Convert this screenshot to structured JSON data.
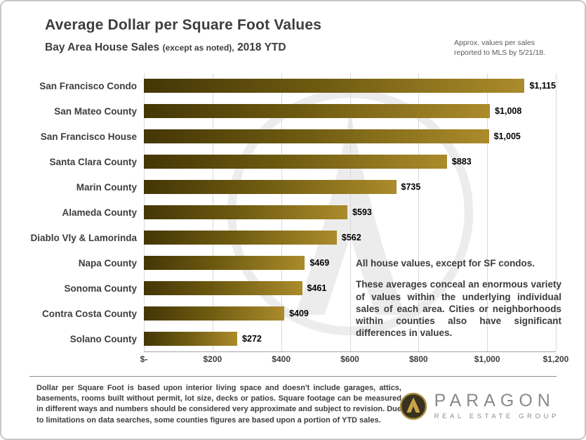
{
  "header": {
    "title": "Average Dollar per Square Foot Values",
    "subtitle_main": "Bay Area House Sales",
    "subtitle_paren": "(except as noted),",
    "subtitle_year": "2018 YTD",
    "note_line1": "Approx. values per sales",
    "note_line2": "reported to MLS by 5/21/18."
  },
  "chart_data": {
    "type": "bar",
    "orientation": "horizontal",
    "title": "Average Dollar per Square Foot Values",
    "subtitle": "Bay Area House Sales (except as noted), 2018 YTD",
    "categories": [
      "San Francisco Condo",
      "San Mateo County",
      "San Francisco House",
      "Santa Clara County",
      "Marin County",
      "Alameda County",
      "Diablo Vly & Lamorinda",
      "Napa County",
      "Sonoma County",
      "Contra Costa County",
      "Solano County"
    ],
    "values": [
      1115,
      1008,
      1005,
      883,
      735,
      593,
      562,
      469,
      461,
      409,
      272
    ],
    "value_labels": [
      "$1,115",
      "$1,008",
      "$1,005",
      "$883",
      "$735",
      "$593",
      "$562",
      "$469",
      "$461",
      "$409",
      "$272"
    ],
    "xlim": [
      0,
      1200
    ],
    "x_ticks": [
      "$-",
      "$200",
      "$400",
      "$600",
      "$800",
      "$1,000",
      "$1,200"
    ],
    "x_tick_values": [
      0,
      200,
      400,
      600,
      800,
      1000,
      1200
    ],
    "grid": true,
    "legend": "none",
    "bar_gradient": [
      "#443606",
      "#ab8b2b"
    ]
  },
  "annotation": {
    "para1": "All house values, except for SF condos.",
    "para2": "These averages conceal an enormous variety of values within the underlying individual sales of each area. Cities or neighborhoods within counties also have significant differences in values."
  },
  "footer": {
    "disclaimer": "Dollar per Square Foot is based upon interior living space and doesn't include garages, attics, basements, rooms built without permit, lot size, decks or patios. Square footage can be measured in different ways and numbers should be considered very approximate and subject to revision. Due to limitations on data searches, some counties figures are based upon a portion of YTD sales.",
    "logo_name": "PARAGON",
    "logo_sub": "REAL ESTATE GROUP"
  }
}
